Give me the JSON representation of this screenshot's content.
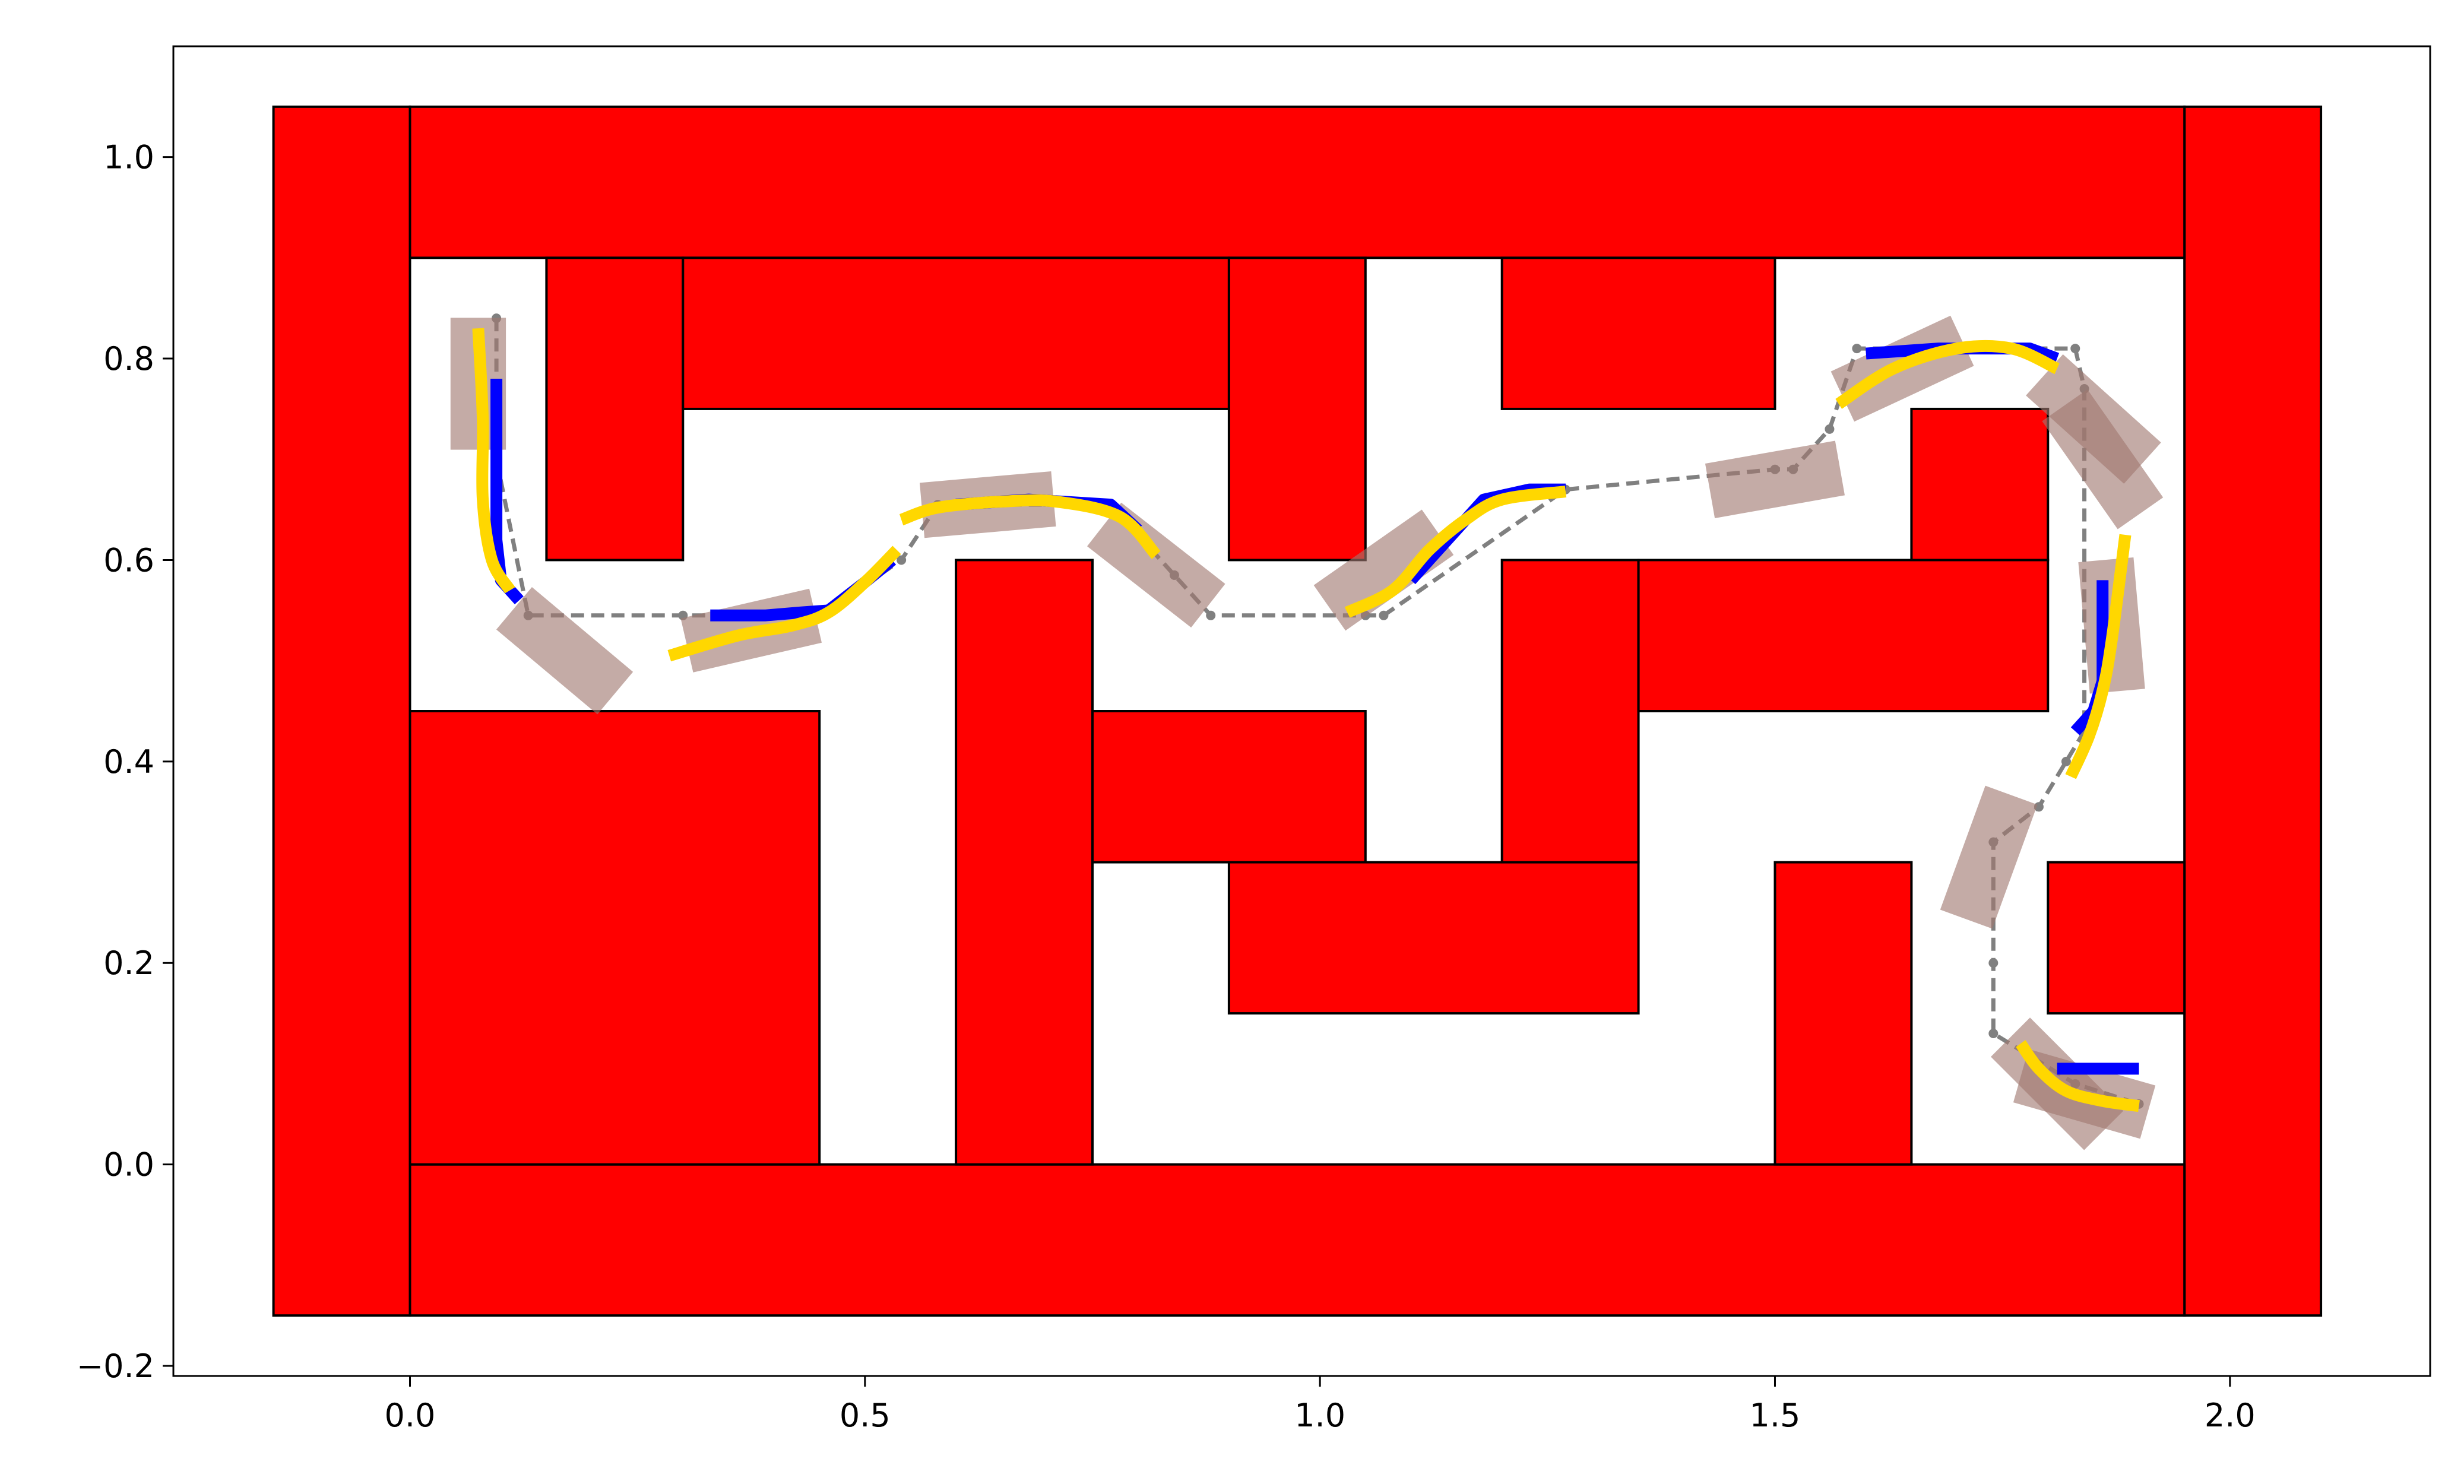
{
  "chart_data": {
    "type": "scatter",
    "title": "",
    "xlabel": "",
    "ylabel": "",
    "xlim": [
      -0.26,
      2.22
    ],
    "ylim": [
      -0.21,
      1.11
    ],
    "xticks": [
      0.0,
      0.5,
      1.0,
      1.5,
      2.0
    ],
    "xtick_labels": [
      "0.0",
      "0.5",
      "1.0",
      "1.5",
      "2.0"
    ],
    "yticks": [
      -0.2,
      0.0,
      0.2,
      0.4,
      0.6,
      0.8,
      1.0
    ],
    "ytick_labels": [
      "−0.2",
      "0.0",
      "0.2",
      "0.4",
      "0.6",
      "0.8",
      "1.0"
    ],
    "grid": false,
    "colors": {
      "obstacle": "#ff0000",
      "obstacle_edge": "#000000",
      "reference_path": "#808080",
      "blue_segments": "#0000ff",
      "yellow_segments": "#ffd700",
      "vehicle_box": "#a07870"
    },
    "obstacles": [
      [
        -0.15,
        -0.15,
        0.0,
        1.05
      ],
      [
        1.95,
        -0.15,
        2.1,
        1.05
      ],
      [
        0.0,
        0.9,
        1.95,
        1.05
      ],
      [
        0.0,
        -0.15,
        1.95,
        0.0
      ],
      [
        0.15,
        0.6,
        0.3,
        0.9
      ],
      [
        0.3,
        0.75,
        0.9,
        0.9
      ],
      [
        0.9,
        0.6,
        1.05,
        0.9
      ],
      [
        1.2,
        0.75,
        1.5,
        0.9
      ],
      [
        0.0,
        0.0,
        0.45,
        0.45
      ],
      [
        0.6,
        0.0,
        0.75,
        0.6
      ],
      [
        0.75,
        0.3,
        1.05,
        0.45
      ],
      [
        0.9,
        0.15,
        1.35,
        0.3
      ],
      [
        1.2,
        0.3,
        1.35,
        0.6
      ],
      [
        1.35,
        0.45,
        1.8,
        0.6
      ],
      [
        1.65,
        0.6,
        1.8,
        0.75
      ],
      [
        1.5,
        0.0,
        1.65,
        0.3
      ],
      [
        1.8,
        0.15,
        1.95,
        0.3
      ]
    ],
    "reference_path": {
      "x": [
        0.095,
        0.095,
        0.13,
        0.3,
        0.45,
        0.54,
        0.58,
        0.77,
        0.84,
        0.88,
        1.05,
        1.07,
        1.27,
        1.5,
        1.52,
        1.56,
        1.59,
        1.83,
        1.84,
        1.84,
        1.82,
        1.79,
        1.74,
        1.74,
        1.74,
        1.83,
        1.9
      ],
      "y": [
        0.84,
        0.7,
        0.545,
        0.545,
        0.545,
        0.6,
        0.655,
        0.655,
        0.585,
        0.545,
        0.545,
        0.545,
        0.67,
        0.69,
        0.69,
        0.73,
        0.81,
        0.81,
        0.77,
        0.43,
        0.4,
        0.355,
        0.32,
        0.2,
        0.13,
        0.08,
        0.06
      ]
    },
    "blue_segments": [
      {
        "x": [
          0.095,
          0.095,
          0.1,
          0.12
        ],
        "y": [
          0.78,
          0.62,
          0.58,
          0.56
        ]
      },
      {
        "x": [
          0.33,
          0.39,
          0.43,
          0.46
        ],
        "y": [
          0.545,
          0.545,
          0.548,
          0.55
        ]
      },
      {
        "x": [
          0.46,
          0.5,
          0.53
        ],
        "y": [
          0.55,
          0.578,
          0.6
        ]
      },
      {
        "x": [
          0.6,
          0.68,
          0.77,
          0.8
        ],
        "y": [
          0.655,
          0.66,
          0.655,
          0.63
        ]
      },
      {
        "x": [
          1.1,
          1.15,
          1.18,
          1.23,
          1.27
        ],
        "y": [
          0.58,
          0.63,
          0.66,
          0.67,
          0.67
        ]
      },
      {
        "x": [
          1.6,
          1.68,
          1.78,
          1.81
        ],
        "y": [
          0.805,
          0.81,
          0.81,
          0.8
        ]
      },
      {
        "x": [
          1.86,
          1.86,
          1.85,
          1.83
        ],
        "y": [
          0.58,
          0.48,
          0.45,
          0.43
        ]
      },
      {
        "x": [
          1.81,
          1.84,
          1.9
        ],
        "y": [
          0.095,
          0.095,
          0.095
        ]
      }
    ],
    "yellow_segments": [
      {
        "x": [
          0.075,
          0.08,
          0.08,
          0.09,
          0.11
        ],
        "y": [
          0.83,
          0.74,
          0.66,
          0.6,
          0.57
        ]
      },
      {
        "x": [
          0.285,
          0.36,
          0.42,
          0.46,
          0.5,
          0.535
        ],
        "y": [
          0.505,
          0.525,
          0.535,
          0.548,
          0.578,
          0.61
        ]
      },
      {
        "x": [
          0.54,
          0.58,
          0.65,
          0.71,
          0.78,
          0.82
        ],
        "y": [
          0.64,
          0.652,
          0.658,
          0.658,
          0.643,
          0.605
        ]
      },
      {
        "x": [
          1.03,
          1.08,
          1.12,
          1.16,
          1.2,
          1.27
        ],
        "y": [
          0.548,
          0.57,
          0.61,
          0.64,
          0.66,
          0.668
        ]
      },
      {
        "x": [
          1.57,
          1.63,
          1.7,
          1.76,
          1.81
        ],
        "y": [
          0.755,
          0.79,
          0.81,
          0.81,
          0.79
        ]
      },
      {
        "x": [
          1.885,
          1.87,
          1.86,
          1.845,
          1.825
        ],
        "y": [
          0.625,
          0.52,
          0.47,
          0.425,
          0.385
        ]
      },
      {
        "x": [
          1.77,
          1.79,
          1.82,
          1.86,
          1.9
        ],
        "y": [
          0.12,
          0.095,
          0.073,
          0.063,
          0.058
        ]
      }
    ],
    "vehicle_boxes": [
      {
        "x": 0.075,
        "y": 0.775,
        "angle_deg": 90
      },
      {
        "x": 0.17,
        "y": 0.51,
        "angle_deg": -40
      },
      {
        "x": 0.375,
        "y": 0.53,
        "angle_deg": 13
      },
      {
        "x": 0.635,
        "y": 0.655,
        "angle_deg": 5
      },
      {
        "x": 0.82,
        "y": 0.595,
        "angle_deg": -38
      },
      {
        "x": 1.07,
        "y": 0.59,
        "angle_deg": 35
      },
      {
        "x": 1.5,
        "y": 0.68,
        "angle_deg": 10
      },
      {
        "x": 1.64,
        "y": 0.79,
        "angle_deg": 25
      },
      {
        "x": 1.85,
        "y": 0.74,
        "angle_deg": -42
      },
      {
        "x": 1.86,
        "y": 0.7,
        "angle_deg": -55
      },
      {
        "x": 1.87,
        "y": 0.535,
        "angle_deg": -85
      },
      {
        "x": 1.735,
        "y": 0.305,
        "angle_deg": 70
      },
      {
        "x": 1.81,
        "y": 0.08,
        "angle_deg": -45
      },
      {
        "x": 1.84,
        "y": 0.07,
        "angle_deg": -16
      }
    ],
    "vehicle_box_size": {
      "length": 0.145,
      "width": 0.055
    }
  }
}
